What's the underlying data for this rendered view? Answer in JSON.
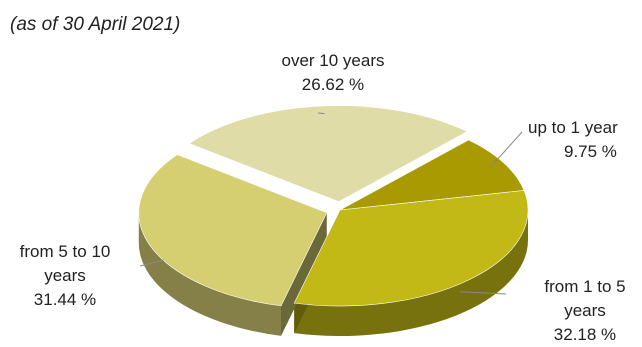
{
  "subtitle": "(as of 30 April 2021)",
  "chart_data": {
    "type": "pie",
    "title": "",
    "subtitle": "(as of 30 April 2021)",
    "three_d": true,
    "slices": [
      {
        "line1": "over 10 years",
        "line2": "",
        "label": "over 10 years",
        "value": 26.62,
        "pct_label": "26.62 %",
        "color": "#e0dca8",
        "exploded": true
      },
      {
        "line1": "up to 1 year",
        "line2": "",
        "label": "up to 1 year",
        "value": 9.75,
        "pct_label": "9.75 %",
        "color": "#a89a00",
        "exploded": false
      },
      {
        "line1": "from 1 to 5",
        "line2": "years",
        "label": "from 1 to 5 years",
        "value": 32.18,
        "pct_label": "32.18 %",
        "color": "#c2b816",
        "exploded": false
      },
      {
        "line1": "from 5 to 10",
        "line2": "years",
        "label": "from 5 to 10 years",
        "value": 31.44,
        "pct_label": "31.44 %",
        "color": "#d6cf72",
        "exploded": true
      }
    ]
  }
}
